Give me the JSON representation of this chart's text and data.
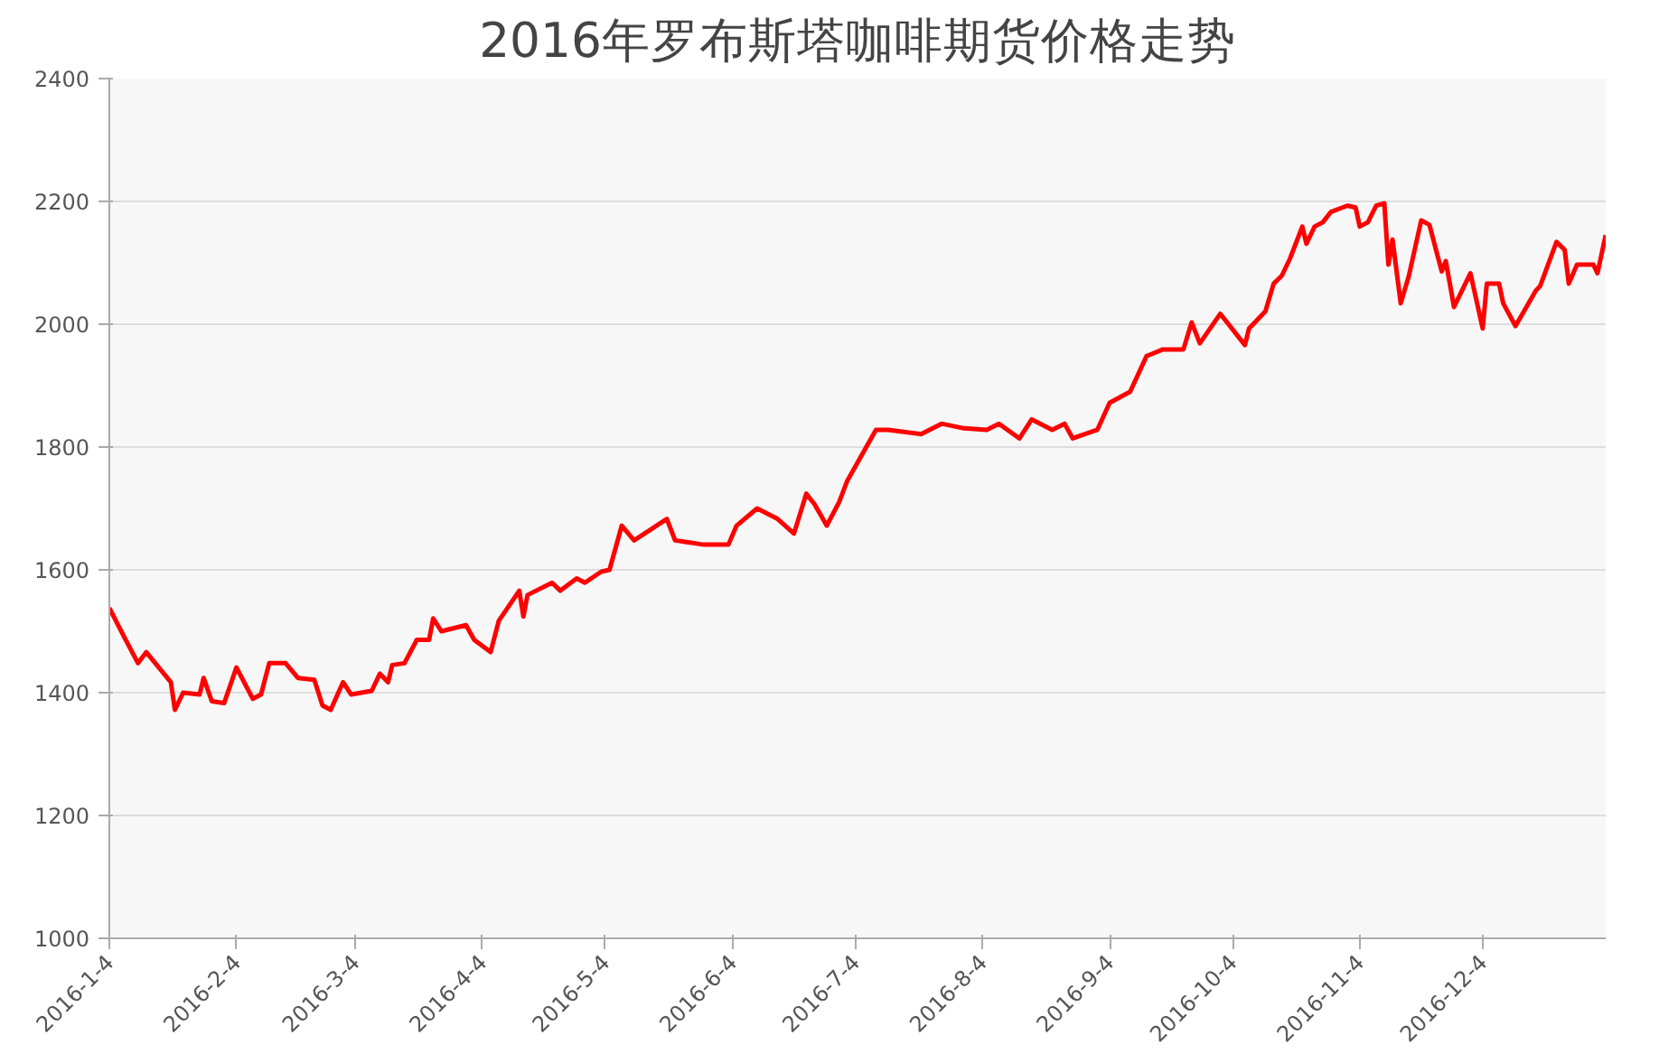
{
  "chart_data": {
    "type": "line",
    "title": "2016年罗布斯塔咖啡期货价格走势",
    "x": [
      "2016-01-04",
      "2016-01-08",
      "2016-01-11",
      "2016-01-13",
      "2016-01-19",
      "2016-01-20",
      "2016-01-22",
      "2016-01-26",
      "2016-01-27",
      "2016-01-29",
      "2016-02-01",
      "2016-02-04",
      "2016-02-08",
      "2016-02-10",
      "2016-02-12",
      "2016-02-16",
      "2016-02-19",
      "2016-02-23",
      "2016-02-25",
      "2016-02-27",
      "2016-03-01",
      "2016-03-03",
      "2016-03-08",
      "2016-03-10",
      "2016-03-12",
      "2016-03-13",
      "2016-03-16",
      "2016-03-19",
      "2016-03-22",
      "2016-03-23",
      "2016-03-25",
      "2016-03-31",
      "2016-04-02",
      "2016-04-06",
      "2016-04-08",
      "2016-04-13",
      "2016-04-14",
      "2016-04-15",
      "2016-04-21",
      "2016-04-23",
      "2016-04-27",
      "2016-04-29",
      "2016-05-03",
      "2016-05-05",
      "2016-05-08",
      "2016-05-11",
      "2016-05-19",
      "2016-05-21",
      "2016-05-28",
      "2016-06-03",
      "2016-06-05",
      "2016-06-10",
      "2016-06-15",
      "2016-06-19",
      "2016-06-22",
      "2016-06-24",
      "2016-06-27",
      "2016-06-30",
      "2016-07-02",
      "2016-07-09",
      "2016-07-12",
      "2016-07-20",
      "2016-07-25",
      "2016-07-30",
      "2016-08-05",
      "2016-08-08",
      "2016-08-13",
      "2016-08-16",
      "2016-08-21",
      "2016-08-24",
      "2016-08-26",
      "2016-09-01",
      "2016-09-04",
      "2016-09-09",
      "2016-09-13",
      "2016-09-17",
      "2016-09-22",
      "2016-09-24",
      "2016-09-26",
      "2016-10-01",
      "2016-10-07",
      "2016-10-08",
      "2016-10-12",
      "2016-10-14",
      "2016-10-16",
      "2016-10-18",
      "2016-10-21",
      "2016-10-22",
      "2016-10-24",
      "2016-10-26",
      "2016-10-28",
      "2016-11-01",
      "2016-11-03",
      "2016-11-04",
      "2016-11-06",
      "2016-11-08",
      "2016-11-10",
      "2016-11-11",
      "2016-11-12",
      "2016-11-14",
      "2016-11-16",
      "2016-11-19",
      "2016-11-21",
      "2016-11-24",
      "2016-11-25",
      "2016-11-27",
      "2016-12-01",
      "2016-12-04",
      "2016-12-05",
      "2016-12-08",
      "2016-12-09",
      "2016-12-12",
      "2016-12-17",
      "2016-12-18",
      "2016-12-22",
      "2016-12-24",
      "2016-12-25",
      "2016-12-27",
      "2016-12-31",
      "2017-01-01",
      "2017-01-03"
    ],
    "series": [
      {
        "color": "#ff0000",
        "values": [
          1538,
          1486,
          1448,
          1466,
          1417,
          1372,
          1400,
          1397,
          1424,
          1386,
          1383,
          1441,
          1390,
          1397,
          1448,
          1448,
          1424,
          1421,
          1379,
          1372,
          1417,
          1397,
          1403,
          1431,
          1417,
          1445,
          1448,
          1486,
          1486,
          1521,
          1500,
          1510,
          1486,
          1466,
          1517,
          1566,
          1524,
          1559,
          1579,
          1566,
          1586,
          1579,
          1597,
          1600,
          1672,
          1648,
          1683,
          1648,
          1641,
          1641,
          1672,
          1700,
          1683,
          1659,
          1724,
          1707,
          1672,
          1710,
          1745,
          1828,
          1828,
          1821,
          1838,
          1831,
          1828,
          1838,
          1814,
          1845,
          1828,
          1838,
          1814,
          1828,
          1872,
          1890,
          1948,
          1959,
          1959,
          2003,
          1969,
          2017,
          1966,
          1993,
          2021,
          2066,
          2079,
          2107,
          2159,
          2131,
          2159,
          2166,
          2183,
          2193,
          2190,
          2159,
          2166,
          2193,
          2197,
          2097,
          2138,
          2034,
          2079,
          2169,
          2162,
          2086,
          2103,
          2028,
          2083,
          1993,
          2066,
          2066,
          2034,
          1997,
          2055,
          2062,
          2134,
          2121,
          2066,
          2097,
          2097,
          2083,
          2145
        ]
      }
    ],
    "xlim": [
      "2016-01-04",
      "2017-01-03"
    ],
    "xticks": [
      {
        "value": "2016-01-04",
        "label": "2016-1-4"
      },
      {
        "value": "2016-02-04",
        "label": "2016-2-4"
      },
      {
        "value": "2016-03-04",
        "label": "2016-3-4"
      },
      {
        "value": "2016-04-04",
        "label": "2016-4-4"
      },
      {
        "value": "2016-05-04",
        "label": "2016-5-4"
      },
      {
        "value": "2016-06-04",
        "label": "2016-6-4"
      },
      {
        "value": "2016-07-04",
        "label": "2016-7-4"
      },
      {
        "value": "2016-08-04",
        "label": "2016-8-4"
      },
      {
        "value": "2016-09-04",
        "label": "2016-9-4"
      },
      {
        "value": "2016-10-04",
        "label": "2016-10-4"
      },
      {
        "value": "2016-11-04",
        "label": "2016-11-4"
      },
      {
        "value": "2016-12-04",
        "label": "2016-12-4"
      }
    ],
    "ylim": [
      1000,
      2400
    ],
    "yticks": [
      1000,
      1200,
      1400,
      1600,
      1800,
      2000,
      2200,
      2400
    ],
    "grid": "y",
    "line_style": "solid"
  }
}
